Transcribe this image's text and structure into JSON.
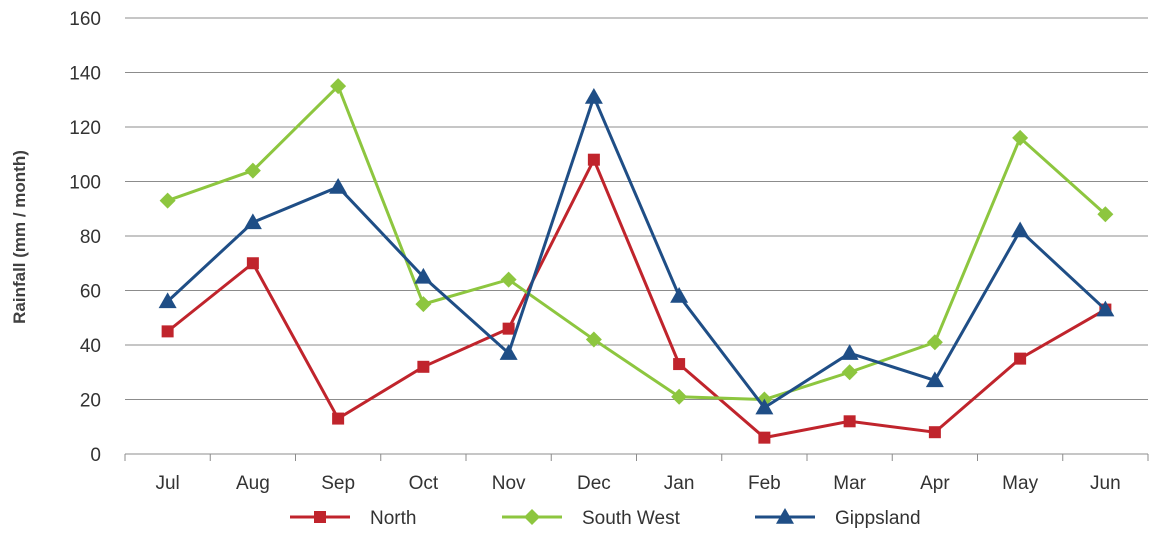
{
  "chart_data": {
    "type": "line",
    "title": "",
    "xlabel": "",
    "ylabel": "Rainfall (mm / month)",
    "categories": [
      "Jul",
      "Aug",
      "Sep",
      "Oct",
      "Nov",
      "Dec",
      "Jan",
      "Feb",
      "Mar",
      "Apr",
      "May",
      "Jun"
    ],
    "ylim": [
      0,
      160
    ],
    "yticks": [
      0,
      20,
      40,
      60,
      80,
      100,
      120,
      140,
      160
    ],
    "ytick_labels": [
      "0",
      "20",
      "40",
      "60",
      "80",
      "100",
      "120",
      "140",
      "160"
    ],
    "grid": "horizontal",
    "legend_position": "bottom",
    "series": [
      {
        "name": "North",
        "color": "#c0242c",
        "marker": "square",
        "values": [
          45,
          70,
          13,
          32,
          46,
          108,
          33,
          6,
          12,
          8,
          35,
          53
        ]
      },
      {
        "name": "South West",
        "color": "#8dc63f",
        "marker": "diamond",
        "values": [
          93,
          104,
          135,
          55,
          64,
          42,
          21,
          20,
          30,
          41,
          116,
          88
        ]
      },
      {
        "name": "Gippsland",
        "color": "#1f4e86",
        "marker": "triangle",
        "values": [
          56,
          85,
          98,
          65,
          37,
          131,
          58,
          17,
          37,
          27,
          82,
          53
        ]
      }
    ]
  }
}
